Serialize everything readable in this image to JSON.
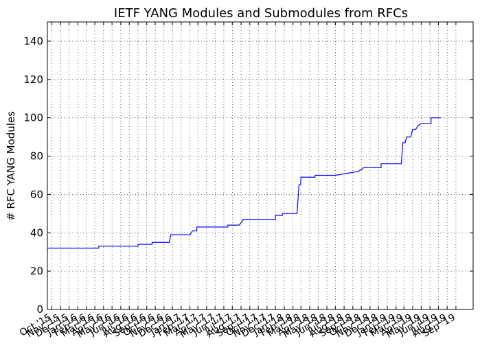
{
  "chart_data": {
    "type": "line",
    "title": "IETF YANG Modules and Submodules from RFCs",
    "xlabel": "",
    "ylabel": "# RFC YANG Modules",
    "ylim": [
      0,
      150
    ],
    "yticks": [
      0,
      20,
      40,
      60,
      80,
      100,
      120,
      140
    ],
    "grid": true,
    "line_color": "#0000ff",
    "x_start": "2015-09-15",
    "x_end": "2019-11-01",
    "xtick_labels": [
      "Oct '15",
      "Nov '15",
      "Dec '15",
      "Jan '16",
      "Feb '16",
      "Mar '16",
      "Apr '16",
      "May '16",
      "Jun '16",
      "Jul '16",
      "Aug '16",
      "Sep '16",
      "Oct '16",
      "Nov '16",
      "Dec '16",
      "Jan '17",
      "Feb '17",
      "Mar '17",
      "Apr '17",
      "May '17",
      "Jun '17",
      "Jul '17",
      "Aug '17",
      "Sep '17",
      "Oct '17",
      "Nov '17",
      "Dec '17",
      "Jan '18",
      "Feb '18",
      "Mar '18",
      "Apr '18",
      "May '18",
      "Jun '18",
      "Jul '18",
      "Aug '18",
      "Sep '18",
      "Oct '18",
      "Nov '18",
      "Dec '18",
      "Jan '19",
      "Feb '19",
      "Mar '19",
      "Apr '19",
      "May '19",
      "Jun '19",
      "Jul '19",
      "Aug '19",
      "Sep '19"
    ],
    "series": [
      {
        "points": [
          [
            "2015-09-15",
            32
          ],
          [
            "2016-03-15",
            32
          ],
          [
            "2016-03-15",
            33
          ],
          [
            "2016-08-01",
            33
          ],
          [
            "2016-08-01",
            34
          ],
          [
            "2016-09-20",
            34
          ],
          [
            "2016-09-20",
            35
          ],
          [
            "2016-11-20",
            35
          ],
          [
            "2016-11-25",
            39
          ],
          [
            "2017-02-01",
            39
          ],
          [
            "2017-02-10",
            41
          ],
          [
            "2017-02-25",
            41
          ],
          [
            "2017-02-25",
            43
          ],
          [
            "2017-06-15",
            43
          ],
          [
            "2017-06-15",
            44
          ],
          [
            "2017-07-25",
            44
          ],
          [
            "2017-08-10",
            47
          ],
          [
            "2017-12-01",
            47
          ],
          [
            "2017-12-01",
            49
          ],
          [
            "2017-12-25",
            49
          ],
          [
            "2017-12-25",
            50
          ],
          [
            "2018-02-15",
            50
          ],
          [
            "2018-02-20",
            60
          ],
          [
            "2018-02-22",
            65
          ],
          [
            "2018-02-28",
            65
          ],
          [
            "2018-03-01",
            69
          ],
          [
            "2018-04-20",
            69
          ],
          [
            "2018-04-20",
            70
          ],
          [
            "2018-07-01",
            70
          ],
          [
            "2018-09-20",
            72
          ],
          [
            "2018-10-10",
            74
          ],
          [
            "2018-12-10",
            74
          ],
          [
            "2018-12-10",
            76
          ],
          [
            "2019-02-20",
            76
          ],
          [
            "2019-02-22",
            81
          ],
          [
            "2019-02-25",
            87
          ],
          [
            "2019-03-05",
            87
          ],
          [
            "2019-03-10",
            90
          ],
          [
            "2019-03-25",
            90
          ],
          [
            "2019-04-01",
            94
          ],
          [
            "2019-04-12",
            94
          ],
          [
            "2019-04-20",
            96
          ],
          [
            "2019-05-01",
            97
          ],
          [
            "2019-06-05",
            97
          ],
          [
            "2019-06-05",
            100
          ],
          [
            "2019-07-10",
            100
          ]
        ]
      }
    ]
  }
}
